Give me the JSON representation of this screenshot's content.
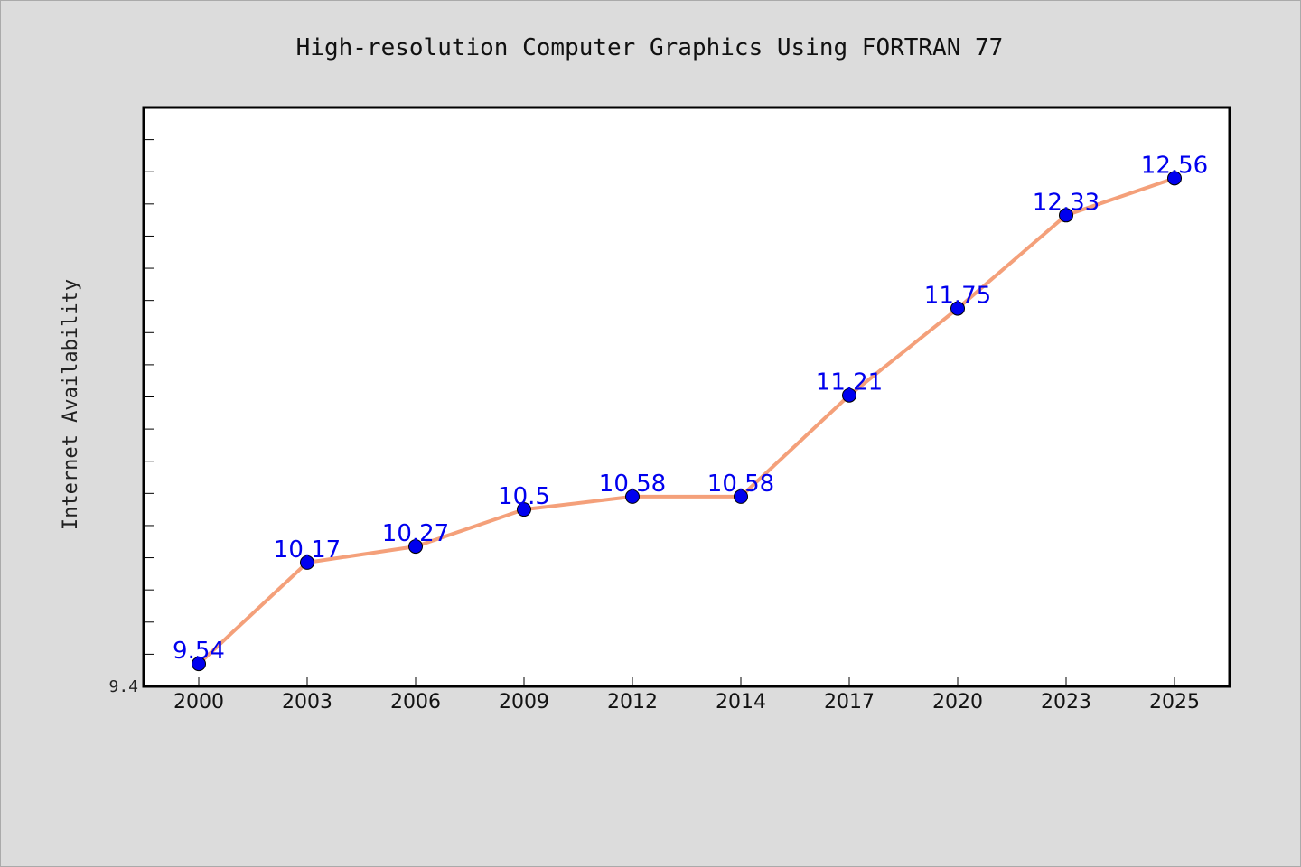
{
  "chart_data": {
    "type": "line",
    "title": "High-resolution Computer Graphics Using FORTRAN 77",
    "xlabel": "",
    "ylabel": "Internet Availability",
    "categories": [
      "2000",
      "2003",
      "2006",
      "2009",
      "2012",
      "2014",
      "2017",
      "2020",
      "2023",
      "2025"
    ],
    "series": [
      {
        "values": [
          9.54,
          10.17,
          10.27,
          10.5,
          10.58,
          10.58,
          11.21,
          11.75,
          12.33,
          12.56
        ],
        "labels": [
          "9.54",
          "10.17",
          "10.27",
          "10.5",
          "10.58",
          "10.58",
          "11.21",
          "11.75",
          "12.33",
          "12.56"
        ]
      }
    ],
    "ylim": [
      9.4,
      13.0
    ],
    "yticklabels": [
      "9.4"
    ],
    "grid": false,
    "line_color": "#f4a07a",
    "marker_color": "#0000ee",
    "label_color": "#0000ee",
    "background_color": "#dcdcdc",
    "plot_background": "#ffffff"
  }
}
